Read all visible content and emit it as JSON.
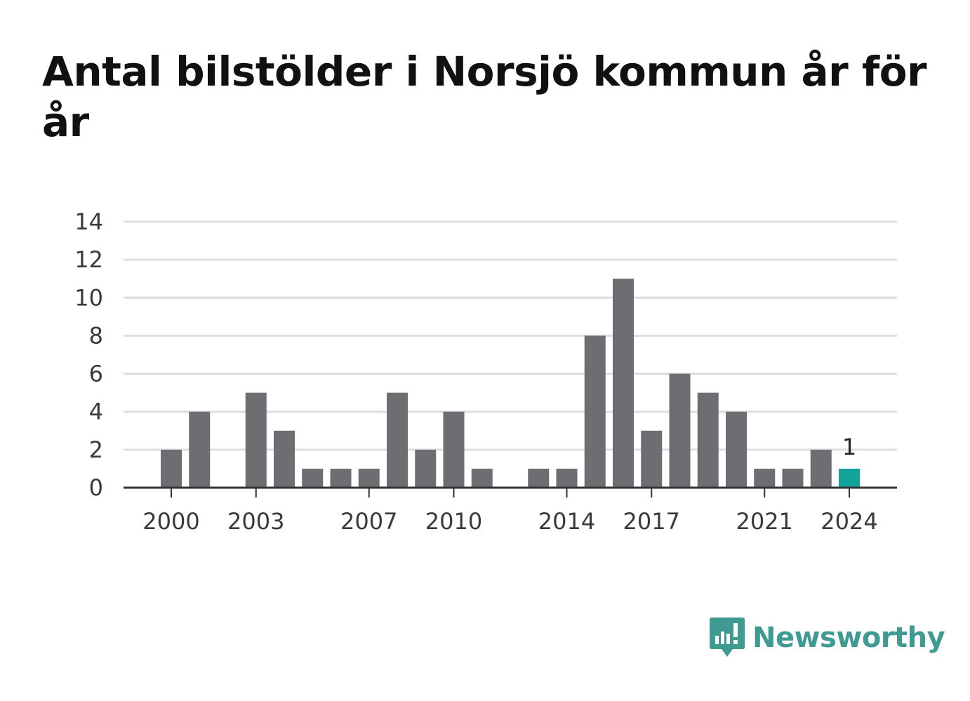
{
  "header": {
    "title": "Antal bilstölder i Norsjö kommun år för år"
  },
  "brand": {
    "name": "Newsworthy",
    "icon": "newsworthy-logo-icon",
    "color": "#3f9a92"
  },
  "chart_data": {
    "type": "bar",
    "title": "Antal bilstölder i Norsjö kommun år för år",
    "xlabel": "",
    "ylabel": "",
    "categories": [
      2000,
      2001,
      2002,
      2003,
      2004,
      2005,
      2006,
      2007,
      2008,
      2009,
      2010,
      2011,
      2012,
      2013,
      2014,
      2015,
      2016,
      2017,
      2018,
      2019,
      2020,
      2021,
      2022,
      2023,
      2024
    ],
    "values": [
      2,
      4,
      0,
      5,
      3,
      1,
      1,
      1,
      5,
      2,
      4,
      1,
      0,
      1,
      1,
      8,
      11,
      3,
      6,
      5,
      4,
      1,
      1,
      2,
      1
    ],
    "x_tick_labels": [
      "2000",
      "2003",
      "2007",
      "2010",
      "2014",
      "2017",
      "2021",
      "2024"
    ],
    "y_ticks": [
      "0",
      "2",
      "4",
      "6",
      "8",
      "10",
      "12",
      "14"
    ],
    "ylim": [
      0,
      14
    ],
    "grid": true,
    "bar_color": "#6e6d72",
    "highlight_color": "#13a39a",
    "highlight_category": 2024,
    "data_labels": [
      {
        "category": 2024,
        "text": "1"
      }
    ]
  }
}
